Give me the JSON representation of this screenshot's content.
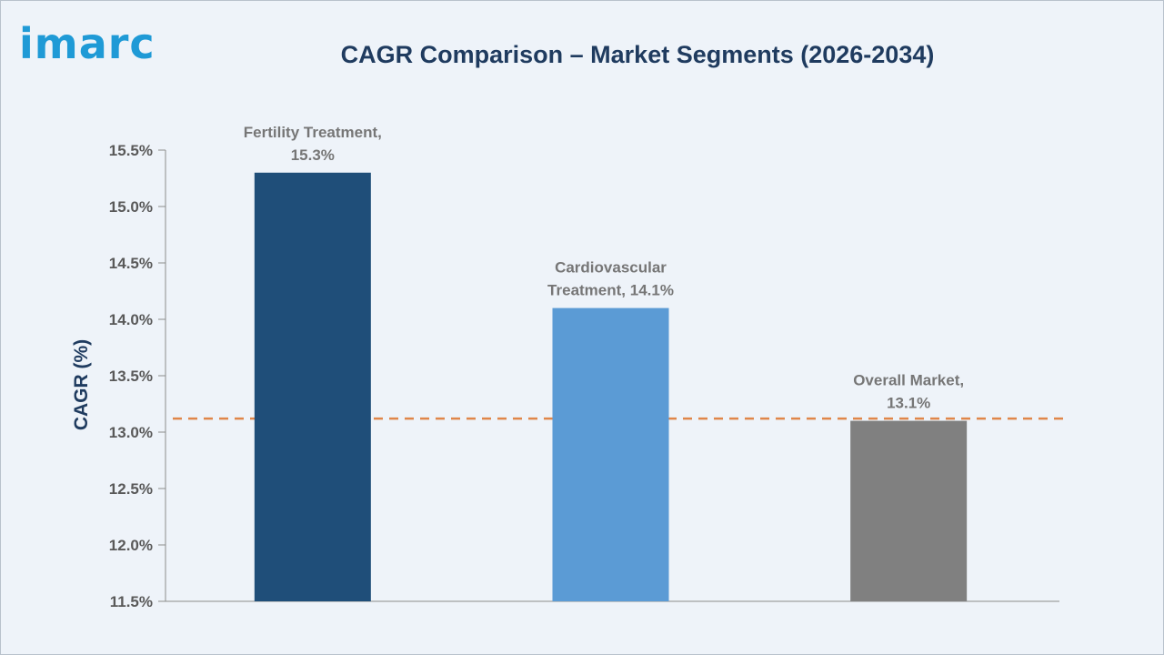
{
  "brand": {
    "logo_text": "imarc"
  },
  "chart_data": {
    "type": "bar",
    "title": "CAGR Comparison – Market Segments (2026-2034)",
    "xlabel": "",
    "ylabel": "CAGR (%)",
    "ylim": [
      11.5,
      15.5
    ],
    "ytick_values": [
      11.5,
      12.0,
      12.5,
      13.0,
      13.5,
      14.0,
      14.5,
      15.0,
      15.5
    ],
    "yticks": [
      "11.5%",
      "12.0%",
      "12.5%",
      "13.0%",
      "13.5%",
      "14.0%",
      "14.5%",
      "15.0%",
      "15.5%"
    ],
    "grid": false,
    "categories": [
      "Fertility Treatment",
      "Cardiovascular Treatment",
      "Overall Market"
    ],
    "values": [
      15.3,
      14.1,
      13.1
    ],
    "data_labels": [
      [
        "Fertility Treatment,",
        "15.3%"
      ],
      [
        "Cardiovascular",
        "Treatment, 14.1%"
      ],
      [
        "Overall Market,",
        "13.1%"
      ]
    ],
    "colors": [
      "#1f4e79",
      "#5b9bd5",
      "#808080"
    ],
    "reference_line": {
      "value": 13.12,
      "style": "dashed",
      "color": "#e0864a"
    }
  },
  "colors": {
    "axis": "#8c8c8c",
    "tick_text": "#595959",
    "label_text": "#767676",
    "ylabel_text": "#1f3b5f"
  }
}
